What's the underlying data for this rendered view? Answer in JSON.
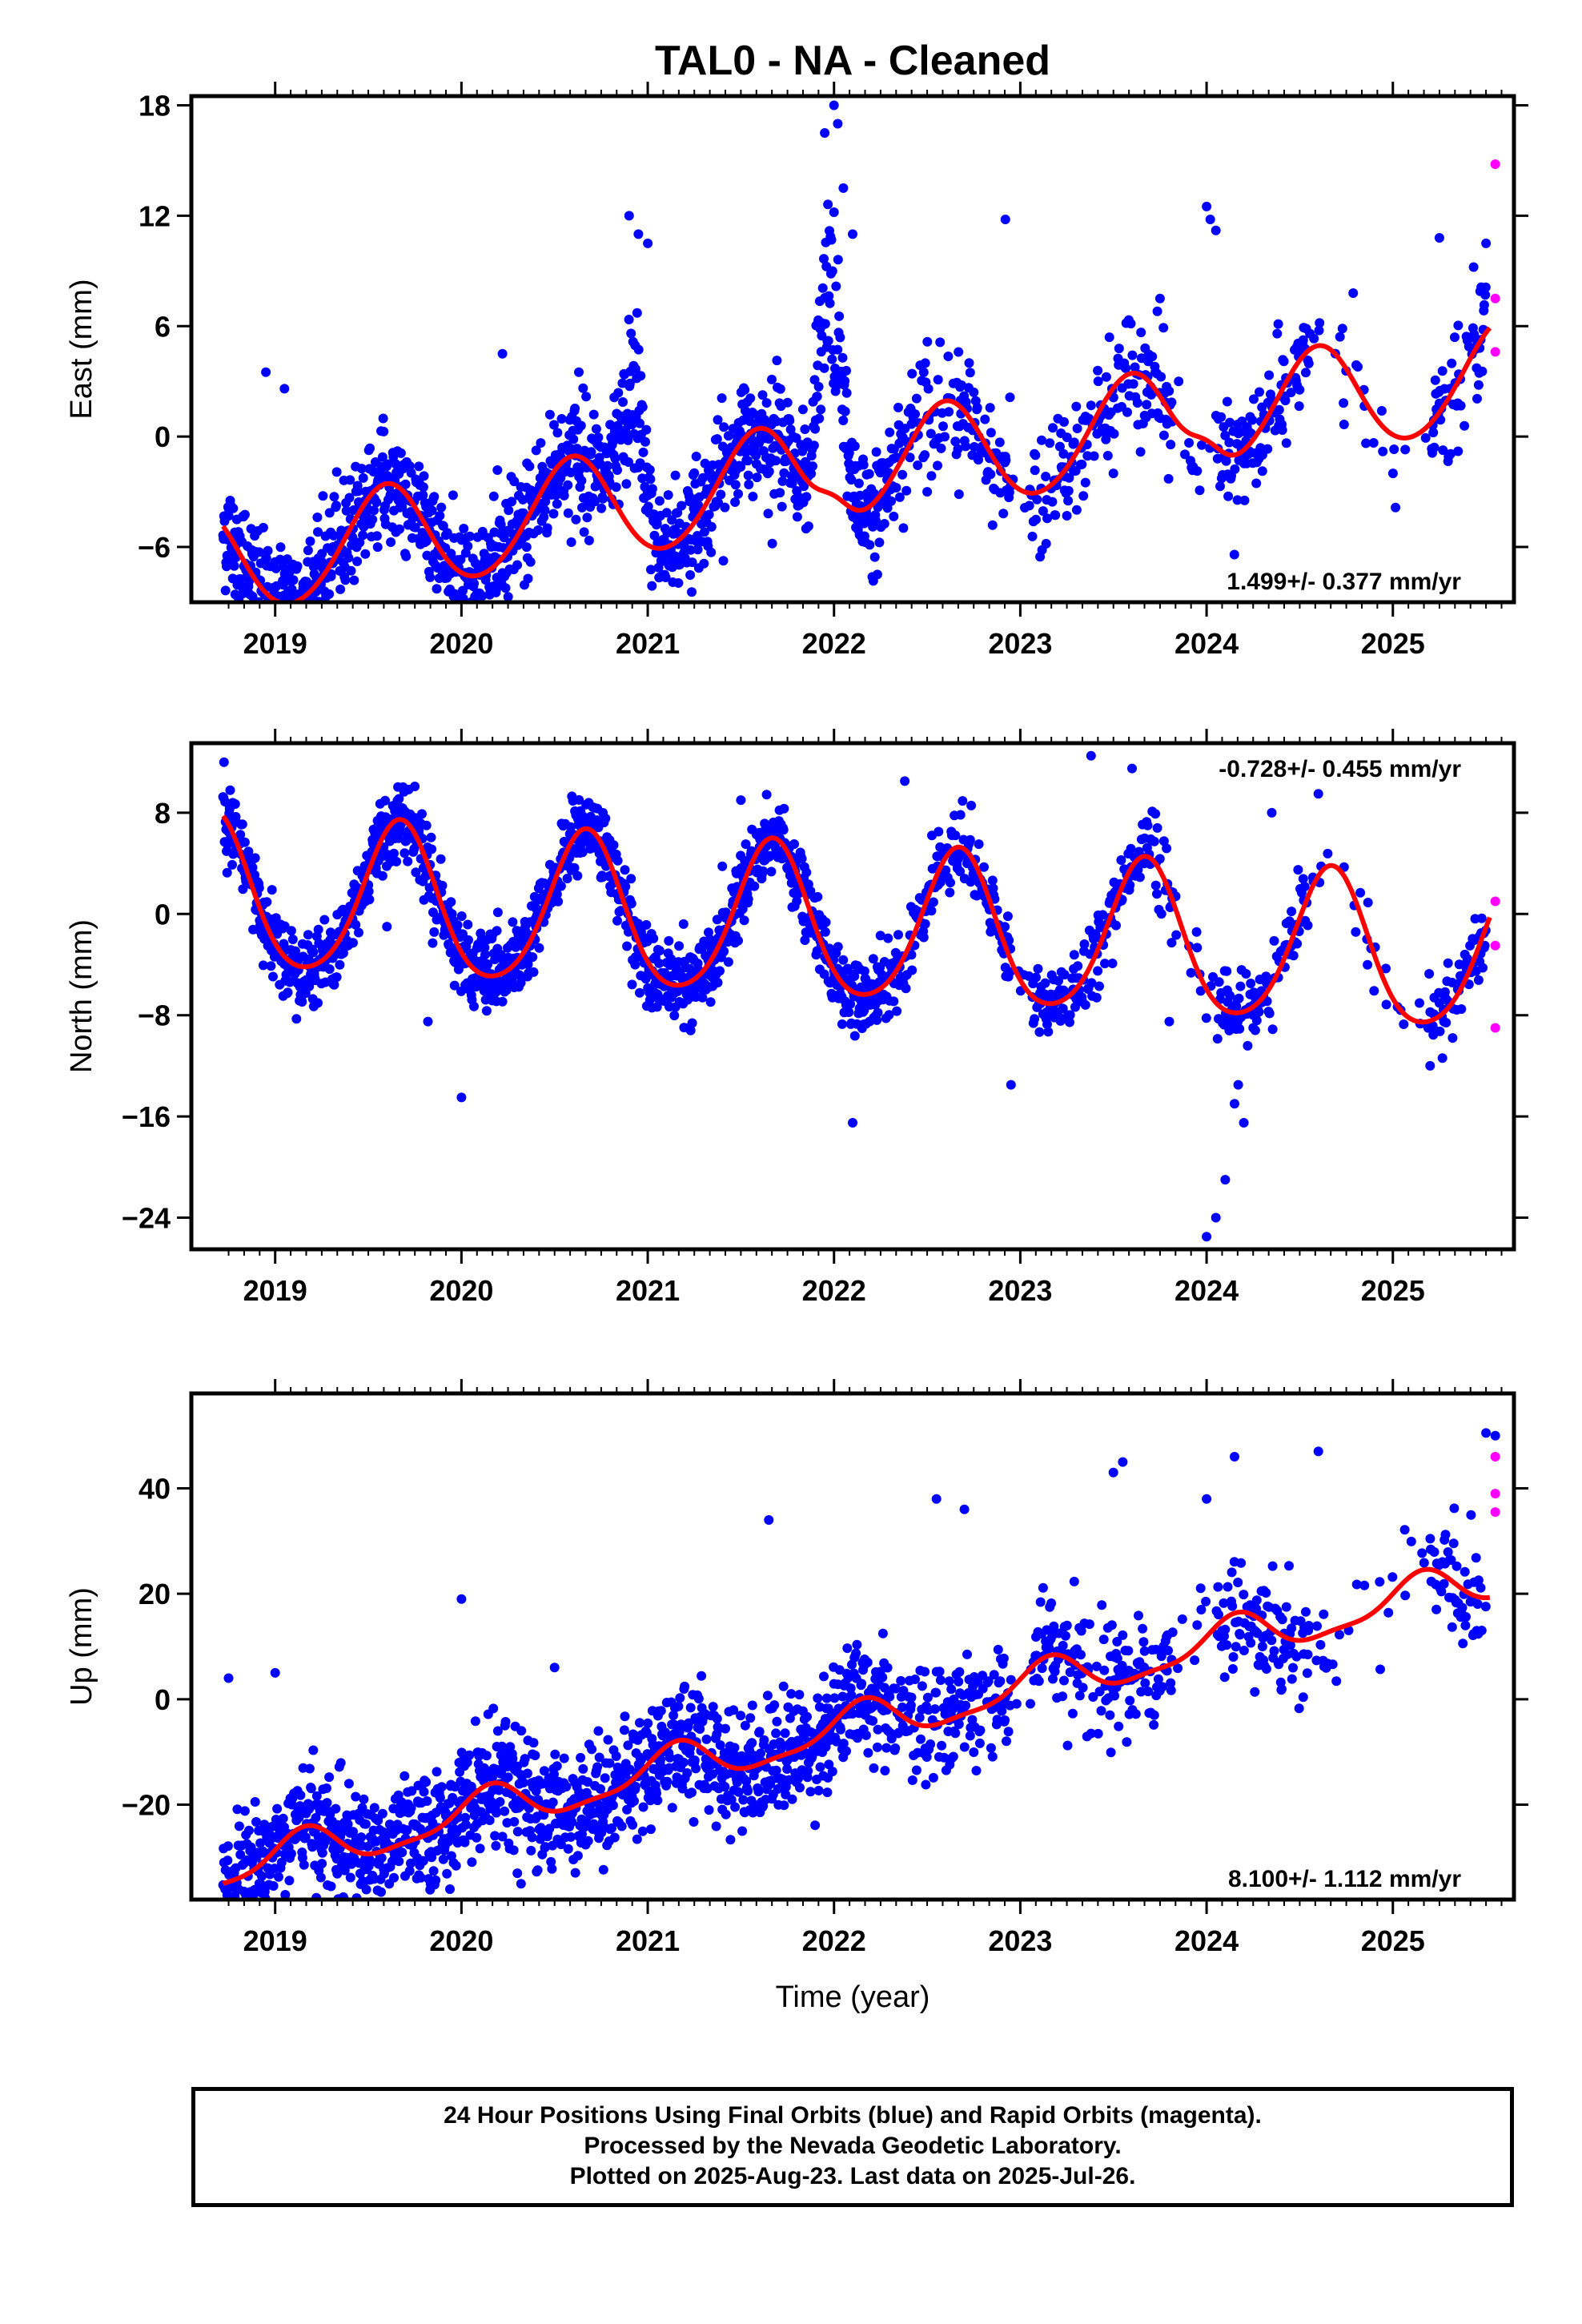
{
  "title": "TAL0  - NA - Cleaned",
  "xlabel": "Time (year)",
  "footer": {
    "line1": "24 Hour Positions Using Final Orbits (blue) and Rapid Orbits (magenta).",
    "line2": "Processed by the Nevada Geodetic Laboratory.",
    "line3": "Plotted on 2025-Aug-23. Last data on 2025-Jul-26."
  },
  "colors": {
    "final": "#0000ff",
    "rapid": "#ff00ff",
    "fit": "#ff0000",
    "frame": "#000000"
  },
  "chart_data": [
    {
      "type": "scatter",
      "component": "east",
      "ylabel": "East (mm)",
      "rate_text": "1.499+/- 0.377 mm/yr",
      "rate_position": "bottom-right",
      "x_range": [
        2018.55,
        2025.65
      ],
      "ylim": [
        -9,
        18.5
      ],
      "yticks": [
        -6,
        0,
        6,
        12,
        18
      ],
      "xticks": [
        2019,
        2020,
        2021,
        2022,
        2023,
        2024,
        2025
      ],
      "series": [
        {
          "name": "Final Orbits",
          "color": "blue",
          "kind": "points",
          "spread": 1.6,
          "gaps": [
            [
              2022.95,
              2023.05
            ],
            [
              2023.82,
              2024.05
            ],
            [
              2024.55,
              2025.2
            ]
          ],
          "outliers": [
            [
              2018.95,
              3.5
            ],
            [
              2019.05,
              2.6
            ],
            [
              2019.15,
              -8.0
            ],
            [
              2019.3,
              -7.6
            ],
            [
              2019.35,
              -8.3
            ],
            [
              2019.55,
              -6.0
            ],
            [
              2020.22,
              4.5
            ],
            [
              2020.35,
              -6.0
            ],
            [
              2020.63,
              3.5
            ],
            [
              2020.9,
              12.0
            ],
            [
              2020.95,
              11.0
            ],
            [
              2021.0,
              10.5
            ],
            [
              2021.85,
              -5.0
            ],
            [
              2021.95,
              16.5
            ],
            [
              2022.0,
              18.0
            ],
            [
              2022.02,
              17.0
            ],
            [
              2022.05,
              13.5
            ],
            [
              2022.1,
              11.0
            ],
            [
              2022.15,
              -5.5
            ],
            [
              2022.5,
              -3.0
            ],
            [
              2022.92,
              11.8
            ],
            [
              2023.25,
              -4.3
            ],
            [
              2023.35,
              -2.5
            ],
            [
              2023.5,
              -2.0
            ],
            [
              2023.75,
              7.5
            ],
            [
              2023.85,
              3.0
            ],
            [
              2024.0,
              12.5
            ],
            [
              2024.02,
              11.8
            ],
            [
              2024.05,
              11.2
            ],
            [
              2024.2,
              -1.0
            ],
            [
              2024.3,
              -1.0
            ],
            [
              2025.25,
              10.8
            ],
            [
              2025.35,
              -0.8
            ],
            [
              2025.5,
              10.5
            ]
          ],
          "spikes": [
            [
              2020.92,
              8.5,
              0.08
            ],
            [
              2021.98,
              12.0,
              0.08
            ]
          ]
        },
        {
          "name": "Rapid Orbits",
          "color": "magenta",
          "kind": "points",
          "points": [
            [
              2025.55,
              14.8
            ],
            [
              2025.55,
              7.5
            ],
            [
              2025.55,
              4.6
            ]
          ]
        },
        {
          "name": "Fit",
          "color": "red",
          "kind": "line",
          "offset": -2.0,
          "rate": 1.499,
          "harmonics": [
            [
              -1.55,
              -2.4
            ],
            [
              0.2,
              0.0
            ]
          ],
          "extra": [
            [
              2022.0,
              1.2,
              0.12
            ],
            [
              2024.0,
              1.2,
              0.12
            ]
          ]
        }
      ]
    },
    {
      "type": "scatter",
      "component": "north",
      "ylabel": "North (mm)",
      "rate_text": "-0.728+/- 0.455 mm/yr",
      "rate_position": "top-right",
      "x_range": [
        2018.55,
        2025.65
      ],
      "ylim": [
        -26.5,
        13.5
      ],
      "yticks": [
        -24,
        -16,
        -8,
        0,
        8
      ],
      "xticks": [
        2019,
        2020,
        2021,
        2022,
        2023,
        2024,
        2025
      ],
      "series": [
        {
          "name": "Final Orbits",
          "color": "blue",
          "kind": "points",
          "spread": 1.5,
          "gaps": [
            [
              2022.95,
              2023.05
            ],
            [
              2023.82,
              2024.05
            ],
            [
              2024.55,
              2025.2
            ]
          ],
          "outliers": [
            [
              2018.75,
              6.5
            ],
            [
              2019.6,
              -1.0
            ],
            [
              2019.82,
              -8.5
            ],
            [
              2020.0,
              -14.5
            ],
            [
              2020.4,
              -1.0
            ],
            [
              2021.22,
              -9.0
            ],
            [
              2021.5,
              9.0
            ],
            [
              2022.1,
              -16.5
            ],
            [
              2022.38,
              10.5
            ],
            [
              2022.95,
              -13.5
            ],
            [
              2023.38,
              12.5
            ],
            [
              2023.6,
              11.5
            ],
            [
              2023.8,
              -8.5
            ],
            [
              2024.0,
              -25.5
            ],
            [
              2024.05,
              -24.0
            ],
            [
              2024.1,
              -21.0
            ],
            [
              2024.15,
              -15.0
            ],
            [
              2024.17,
              -13.5
            ],
            [
              2024.2,
              -16.5
            ],
            [
              2024.25,
              -9.0
            ],
            [
              2024.35,
              8.0
            ],
            [
              2024.6,
              9.5
            ],
            [
              2025.2,
              -12.0
            ]
          ]
        },
        {
          "name": "Rapid Orbits",
          "color": "magenta",
          "kind": "points",
          "points": [
            [
              2025.55,
              1.0
            ],
            [
              2025.55,
              -2.5
            ],
            [
              2025.55,
              -9.0
            ]
          ]
        },
        {
          "name": "Fit",
          "color": "red",
          "kind": "line",
          "offset": -1.0,
          "rate": -0.728,
          "harmonics": [
            [
              -5.2,
              -3.0
            ],
            [
              0.6,
              -0.5
            ]
          ],
          "extra": []
        }
      ]
    },
    {
      "type": "scatter",
      "component": "up",
      "ylabel": "Up (mm)",
      "rate_text": "8.100+/- 1.112 mm/yr",
      "rate_position": "bottom-right",
      "x_range": [
        2018.55,
        2025.65
      ],
      "ylim": [
        -38,
        58
      ],
      "yticks": [
        -20,
        0,
        20,
        40
      ],
      "xticks": [
        2019,
        2020,
        2021,
        2022,
        2023,
        2024,
        2025
      ],
      "series": [
        {
          "name": "Final Orbits",
          "color": "blue",
          "kind": "points",
          "spread": 5.5,
          "gaps": [
            [
              2022.95,
              2023.05
            ],
            [
              2023.82,
              2024.05
            ],
            [
              2024.55,
              2025.2
            ]
          ],
          "outliers": [
            [
              2018.75,
              4.0
            ],
            [
              2019.0,
              5.0
            ],
            [
              2019.2,
              -28.0
            ],
            [
              2019.3,
              -35.5
            ],
            [
              2020.0,
              19.0
            ],
            [
              2020.3,
              -33.0
            ],
            [
              2020.32,
              -35.0
            ],
            [
              2020.5,
              6.0
            ],
            [
              2021.2,
              -15.0
            ],
            [
              2021.65,
              34.0
            ],
            [
              2022.4,
              -6.0
            ],
            [
              2022.55,
              38.0
            ],
            [
              2022.7,
              36.0
            ],
            [
              2023.5,
              43.0
            ],
            [
              2023.55,
              45.0
            ],
            [
              2024.0,
              38.0
            ],
            [
              2024.15,
              46.0
            ],
            [
              2024.3,
              10.0
            ],
            [
              2024.6,
              47.0
            ],
            [
              2025.45,
              13.0
            ],
            [
              2025.5,
              50.5
            ],
            [
              2025.55,
              50.0
            ]
          ]
        },
        {
          "name": "Rapid Orbits",
          "color": "magenta",
          "kind": "points",
          "points": [
            [
              2025.55,
              46.0
            ],
            [
              2025.55,
              39.0
            ],
            [
              2025.55,
              35.5
            ]
          ]
        },
        {
          "name": "Fit",
          "color": "red",
          "kind": "line",
          "offset": -6.0,
          "rate": 8.1,
          "harmonics": [
            [
              3.0,
              2.4
            ],
            [
              0.9,
              -0.7
            ]
          ],
          "extra": []
        }
      ]
    }
  ]
}
